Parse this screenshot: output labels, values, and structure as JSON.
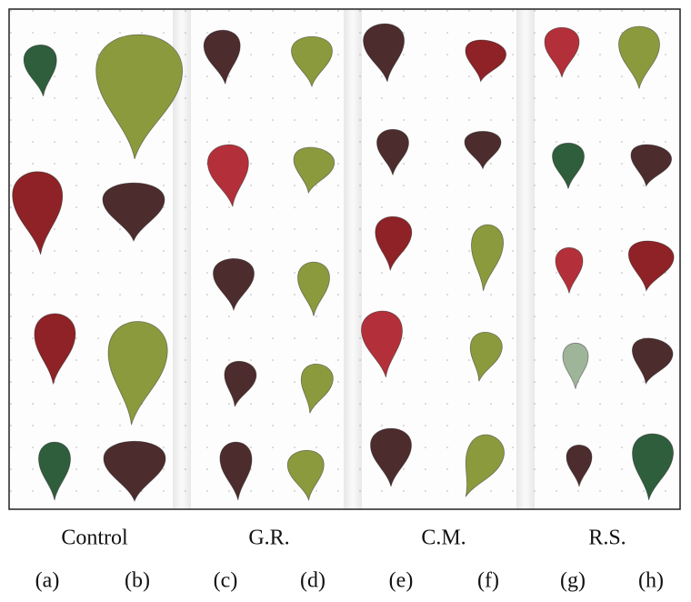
{
  "panels": [
    {
      "group": "Control",
      "labels": [
        "(a)",
        "(b)"
      ]
    },
    {
      "group": "G.R.",
      "labels": [
        "(c)",
        "(d)"
      ]
    },
    {
      "group": "C.M.",
      "labels": [
        "(e)",
        "(f)"
      ]
    },
    {
      "group": "R.S.",
      "labels": [
        "(g)",
        "(h)"
      ]
    }
  ]
}
